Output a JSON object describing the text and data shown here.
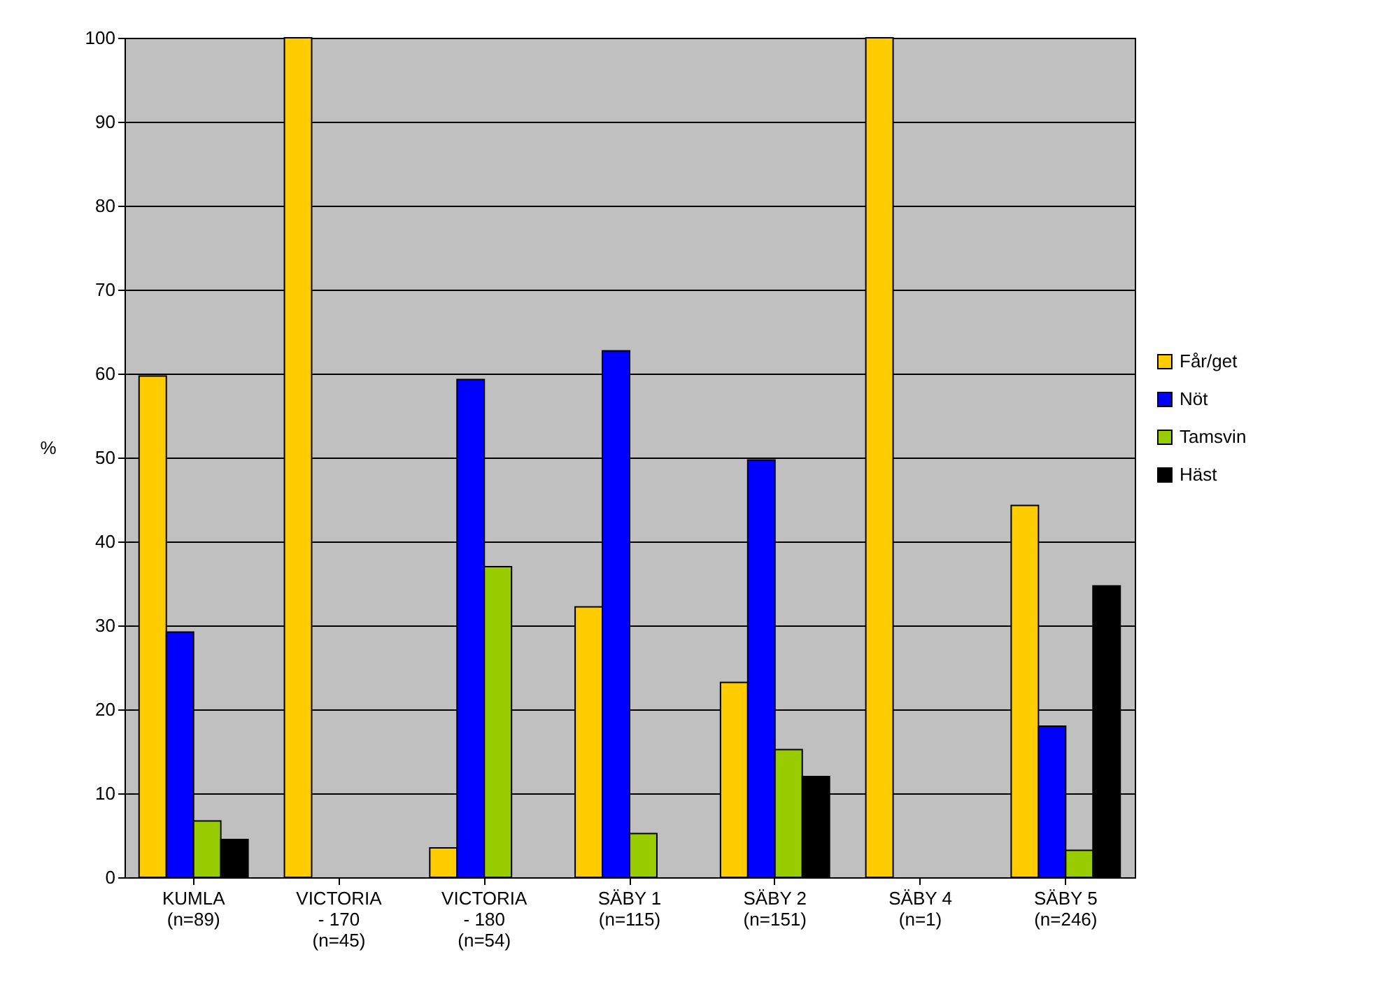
{
  "chart_data": {
    "type": "bar",
    "ylabel": "%",
    "categories": [
      "KUMLA\n(n=89)",
      "VICTORIA\n- 170\n(n=45)",
      "VICTORIA\n- 180\n(n=54)",
      "SÄBY 1\n(n=115)",
      "SÄBY 2\n(n=151)",
      "SÄBY 4\n(n=1)",
      "SÄBY 5\n(n=246)"
    ],
    "series": [
      {
        "name": "Får/get",
        "color": "#ffcc00",
        "values": [
          59.7,
          100,
          3.5,
          32.2,
          23.2,
          100,
          44.3
        ]
      },
      {
        "name": "Nöt",
        "color": "#0000ff",
        "values": [
          29.2,
          null,
          59.3,
          62.7,
          49.7,
          null,
          18
        ]
      },
      {
        "name": "Tamsvin",
        "color": "#99cc00",
        "values": [
          6.7,
          null,
          37,
          5.2,
          15.2,
          null,
          3.2
        ]
      },
      {
        "name": "Häst",
        "color": "#000000",
        "values": [
          4.5,
          null,
          null,
          null,
          12,
          null,
          34.7
        ]
      }
    ],
    "ylim": [
      0,
      100
    ],
    "yticks": [
      0,
      10,
      20,
      30,
      40,
      50,
      60,
      70,
      80,
      90,
      100
    ],
    "grid": "y",
    "legend": "right"
  }
}
